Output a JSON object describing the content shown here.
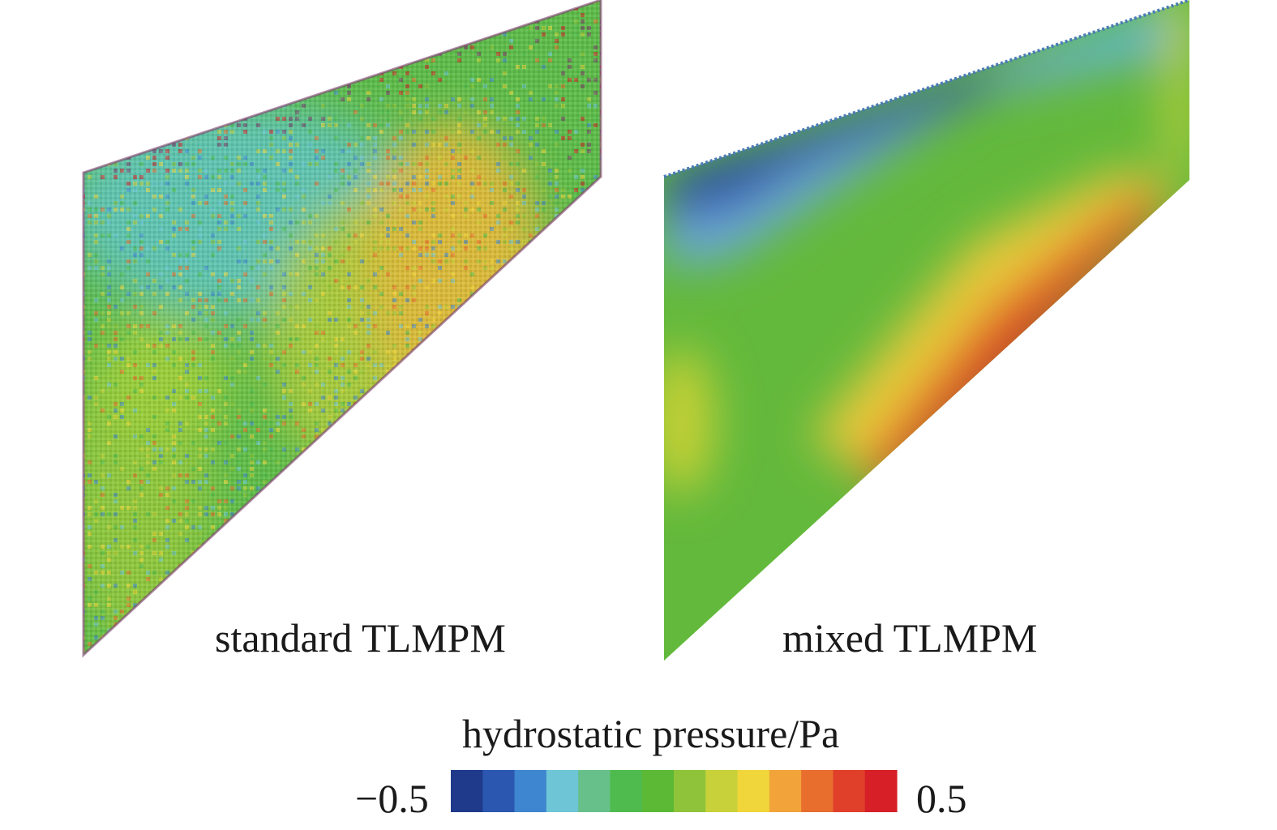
{
  "panels": [
    {
      "label": "standard TLMPM",
      "field": "noisy"
    },
    {
      "label": "mixed TLMPM",
      "field": "smooth"
    }
  ],
  "colorbar": {
    "title": "hydrostatic pressure/Pa",
    "min_label": "−0.5",
    "max_label": "0.5",
    "min": -0.5,
    "max": 0.5,
    "colors": [
      "#1f3a8a",
      "#2b57b0",
      "#3f86d0",
      "#6ec5d6",
      "#67c08a",
      "#4fbb4f",
      "#5cb936",
      "#8fc43a",
      "#c8d13a",
      "#f0d63a",
      "#f2a43a",
      "#e86e2e",
      "#e0402a",
      "#d61f26"
    ]
  }
}
